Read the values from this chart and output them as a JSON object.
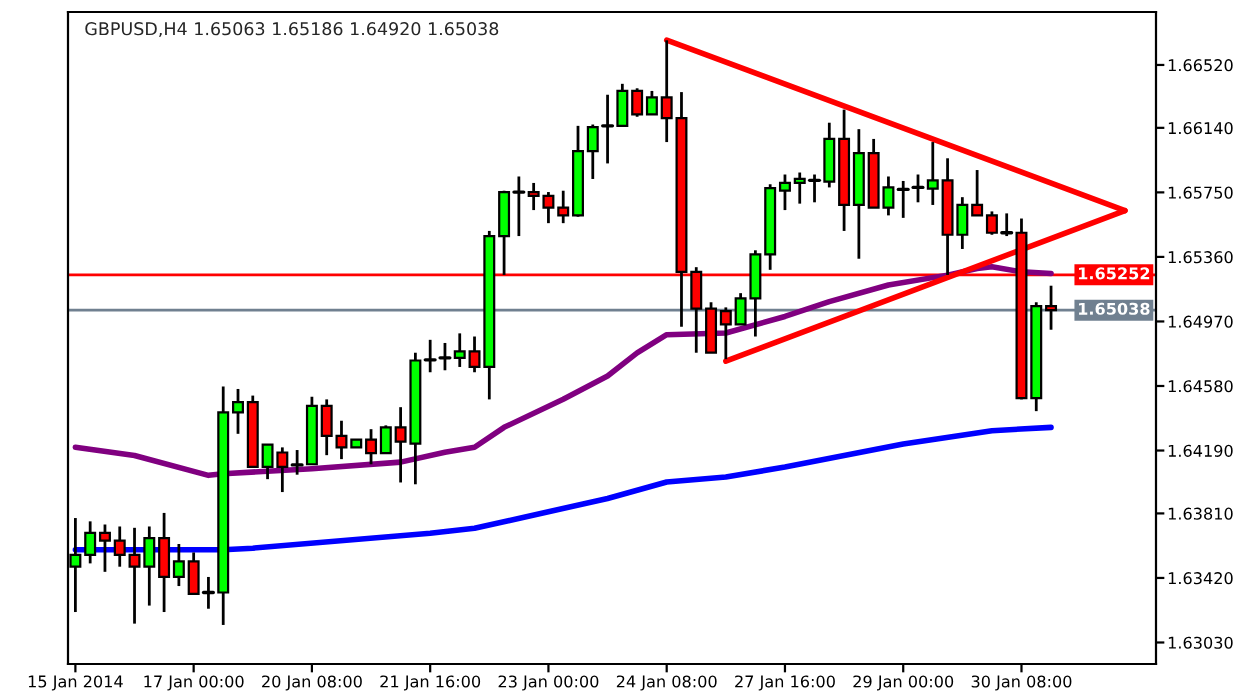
{
  "chart_data": {
    "type": "candlestick",
    "title": "GBPUSD,H4 1.65063 1.65186 1.64920 1.65038",
    "categories": [
      "15 Jan 2014",
      null,
      null,
      null,
      null,
      null,
      null,
      null,
      "17 Jan 00:00",
      null,
      null,
      null,
      null,
      null,
      null,
      null,
      "20 Jan 08:00",
      null,
      null,
      null,
      null,
      null,
      null,
      null,
      "21 Jan 16:00",
      null,
      null,
      null,
      null,
      null,
      null,
      null,
      "23 Jan 00:00",
      null,
      null,
      null,
      null,
      null,
      null,
      null,
      "24 Jan 08:00",
      null,
      null,
      null,
      null,
      null,
      null,
      null,
      "27 Jan 16:00",
      null,
      null,
      null,
      null,
      null,
      null,
      null,
      "29 Jan 00:00",
      null,
      null,
      null,
      null,
      null,
      null,
      null,
      "30 Jan 08:00",
      null,
      null,
      null,
      null,
      null,
      null,
      null,
      null,
      null
    ],
    "ohlc": [
      [
        1.63488,
        1.63782,
        1.63214,
        1.63559
      ],
      [
        1.63559,
        1.63762,
        1.63508,
        1.63692
      ],
      [
        1.63692,
        1.63743,
        1.63457,
        1.63645
      ],
      [
        1.63645,
        1.63731,
        1.63488,
        1.63559
      ],
      [
        1.63559,
        1.63723,
        1.63144,
        1.63488
      ],
      [
        1.63488,
        1.63731,
        1.63253,
        1.63661
      ],
      [
        1.63661,
        1.63813,
        1.63214,
        1.63426
      ],
      [
        1.63426,
        1.63625,
        1.63371,
        1.6352
      ],
      [
        1.6352,
        1.63574,
        1.63324,
        1.63324
      ],
      [
        1.63332,
        1.63426,
        1.63234,
        1.63332
      ],
      [
        1.63332,
        1.64577,
        1.63136,
        1.64421
      ],
      [
        1.64421,
        1.64562,
        1.64291,
        1.64483
      ],
      [
        1.64483,
        1.64522,
        1.64091,
        1.64091
      ],
      [
        1.64091,
        1.64225,
        1.64017,
        1.64225
      ],
      [
        1.64178,
        1.64209,
        1.63939,
        1.64091
      ],
      [
        1.64103,
        1.64193,
        1.64044,
        1.64103
      ],
      [
        1.64107,
        1.64515,
        1.64107,
        1.6446
      ],
      [
        1.6446,
        1.64499,
        1.64162,
        1.64279
      ],
      [
        1.64279,
        1.6437,
        1.64138,
        1.64209
      ],
      [
        1.64209,
        1.64256,
        1.64209,
        1.64256
      ],
      [
        1.64256,
        1.64319,
        1.64107,
        1.64174
      ],
      [
        1.64174,
        1.64342,
        1.64174,
        1.6433
      ],
      [
        1.6433,
        1.64452,
        1.63997,
        1.64244
      ],
      [
        1.64232,
        1.64781,
        1.63986,
        1.64734
      ],
      [
        1.64738,
        1.64859,
        1.64663,
        1.64738
      ],
      [
        1.6475,
        1.6484,
        1.64675,
        1.6475
      ],
      [
        1.6475,
        1.64898,
        1.64695,
        1.64789
      ],
      [
        1.64789,
        1.64879,
        1.64663,
        1.64695
      ],
      [
        1.64695,
        1.65517,
        1.64499,
        1.65486
      ],
      [
        1.65486,
        1.6576,
        1.65251,
        1.65752
      ],
      [
        1.65752,
        1.65846,
        1.65486,
        1.65752
      ],
      [
        1.65752,
        1.65807,
        1.65643,
        1.65729
      ],
      [
        1.65729,
        1.65752,
        1.65564,
        1.65658
      ],
      [
        1.65658,
        1.6576,
        1.65564,
        1.65611
      ],
      [
        1.65611,
        1.66152,
        1.65603,
        1.65999
      ],
      [
        1.65999,
        1.6616,
        1.65831,
        1.66144
      ],
      [
        1.66152,
        1.6634,
        1.65925,
        1.66152
      ],
      [
        1.66152,
        1.66406,
        1.66152,
        1.66363
      ],
      [
        1.66363,
        1.66379,
        1.66207,
        1.66222
      ],
      [
        1.66222,
        1.66363,
        1.66222,
        1.66324
      ],
      [
        1.66324,
        1.66669,
        1.66054,
        1.66199
      ],
      [
        1.66199,
        1.66356,
        1.64938,
        1.6527
      ],
      [
        1.6527,
        1.65298,
        1.64781,
        1.65047
      ],
      [
        1.65047,
        1.65086,
        1.64781,
        1.64781
      ],
      [
        1.65032,
        1.65055,
        1.64742,
        1.64953
      ],
      [
        1.64953,
        1.65141,
        1.64953,
        1.6511
      ],
      [
        1.6511,
        1.654,
        1.64879,
        1.65376
      ],
      [
        1.65376,
        1.65799,
        1.65282,
        1.65776
      ],
      [
        1.6576,
        1.65858,
        1.65643,
        1.65807
      ],
      [
        1.65807,
        1.6587,
        1.65682,
        1.65831
      ],
      [
        1.65823,
        1.65858,
        1.6569,
        1.65823
      ],
      [
        1.65815,
        1.66171,
        1.6578,
        1.66073
      ],
      [
        1.66073,
        1.6625,
        1.65517,
        1.65674
      ],
      [
        1.65674,
        1.66132,
        1.65349,
        1.65987
      ],
      [
        1.65987,
        1.66073,
        1.65658,
        1.65658
      ],
      [
        1.65658,
        1.65846,
        1.65611,
        1.6578
      ],
      [
        1.65768,
        1.65819,
        1.65596,
        1.65768
      ],
      [
        1.6578,
        1.65858,
        1.6569,
        1.6578
      ],
      [
        1.65772,
        1.66054,
        1.65674,
        1.65823
      ],
      [
        1.65823,
        1.65956,
        1.65251,
        1.65494
      ],
      [
        1.65494,
        1.65721,
        1.65408,
        1.65674
      ],
      [
        1.65674,
        1.65885,
        1.65611,
        1.65611
      ],
      [
        1.65611,
        1.65635,
        1.65494,
        1.65506
      ],
      [
        1.65506,
        1.65623,
        1.65486,
        1.65506
      ],
      [
        1.65506,
        1.65592,
        1.64499,
        1.64507
      ],
      [
        1.64507,
        1.65086,
        1.64428,
        1.65063
      ],
      [
        1.65063,
        1.65186,
        1.6492,
        1.65038
      ],
      null,
      null,
      null,
      null,
      null,
      null,
      null
    ],
    "colors": [
      "#00ff00",
      "#00ff00",
      "#ff0000",
      "#ff0000",
      "#ff0000",
      "#00ff00",
      "#ff0000",
      "#00ff00",
      "#ff0000",
      "#000000",
      "#00ff00",
      "#00ff00",
      "#ff0000",
      "#00ff00",
      "#ff0000",
      "#000000",
      "#00ff00",
      "#ff0000",
      "#ff0000",
      "#00ff00",
      "#ff0000",
      "#00ff00",
      "#ff0000",
      "#00ff00",
      "#000000",
      "#000000",
      "#00ff00",
      "#ff0000",
      "#00ff00",
      "#00ff00",
      "#000000",
      "#ff0000",
      "#ff0000",
      "#ff0000",
      "#00ff00",
      "#00ff00",
      "#000000",
      "#00ff00",
      "#ff0000",
      "#00ff00",
      "#ff0000",
      "#ff0000",
      "#ff0000",
      "#ff0000",
      "#ff0000",
      "#00ff00",
      "#00ff00",
      "#00ff00",
      "#00ff00",
      "#00ff00",
      "#000000",
      "#00ff00",
      "#ff0000",
      "#00ff00",
      "#ff0000",
      "#00ff00",
      "#000000",
      "#000000",
      "#00ff00",
      "#ff0000",
      "#00ff00",
      "#ff0000",
      "#ff0000",
      "#000000",
      "#ff0000",
      "#00ff00",
      "#ff0000",
      null,
      null,
      null,
      null,
      null,
      null,
      null
    ],
    "series": [
      {
        "type": "line",
        "color": "#800080",
        "values": [
          1.6421,
          null,
          null,
          null,
          1.6416,
          null,
          null,
          null,
          null,
          1.6404,
          1.6405,
          null,
          null,
          null,
          null,
          null,
          1.6408,
          null,
          null,
          null,
          null,
          null,
          1.6412,
          null,
          null,
          1.6418,
          null,
          1.6421,
          null,
          1.6433,
          null,
          null,
          null,
          1.645,
          null,
          null,
          1.6464,
          null,
          1.6478,
          null,
          1.6489,
          null,
          null,
          null,
          1.649,
          null,
          null,
          null,
          1.65,
          null,
          null,
          1.6509,
          null,
          null,
          null,
          1.6519,
          null,
          null,
          null,
          1.6525,
          null,
          1.6529,
          1.653,
          null,
          1.6527,
          null,
          1.6526,
          null,
          null,
          null,
          null,
          null,
          null,
          null
        ]
      },
      {
        "type": "line",
        "color": "#0000ff",
        "values": [
          1.6359,
          null,
          null,
          null,
          null,
          null,
          null,
          null,
          null,
          null,
          1.6359,
          null,
          1.636,
          null,
          null,
          null,
          null,
          null,
          null,
          null,
          null,
          null,
          null,
          null,
          1.6369,
          null,
          null,
          1.6372,
          null,
          null,
          null,
          null,
          1.6382,
          null,
          null,
          null,
          1.639,
          null,
          null,
          null,
          1.64,
          null,
          null,
          null,
          1.6403,
          null,
          null,
          null,
          1.6409,
          null,
          null,
          null,
          null,
          null,
          null,
          null,
          1.6423,
          null,
          null,
          null,
          null,
          null,
          1.6431,
          null,
          null,
          null,
          1.6433,
          null,
          null,
          null,
          null,
          null,
          null,
          null
        ]
      },
      {
        "type": "line",
        "color": "#ff0000",
        "values": [
          null,
          null,
          null,
          null,
          null,
          null,
          null,
          null,
          null,
          null,
          null,
          null,
          null,
          null,
          null,
          null,
          null,
          null,
          null,
          null,
          null,
          null,
          null,
          null,
          null,
          null,
          null,
          null,
          null,
          null,
          null,
          null,
          null,
          null,
          null,
          null,
          null,
          null,
          null,
          null,
          1.6667,
          null,
          null,
          null,
          null,
          null,
          null,
          null,
          null,
          null,
          null,
          null,
          null,
          null,
          null,
          null,
          null,
          null,
          null,
          null,
          null,
          null,
          null,
          null,
          null,
          null,
          null,
          null,
          null,
          null,
          null,
          1.6564,
          null,
          null
        ]
      },
      {
        "type": "line",
        "color": "#ff0000",
        "values": [
          null,
          null,
          null,
          null,
          null,
          null,
          null,
          null,
          null,
          null,
          null,
          null,
          null,
          null,
          null,
          null,
          null,
          null,
          null,
          null,
          null,
          null,
          null,
          null,
          null,
          null,
          null,
          null,
          null,
          null,
          null,
          null,
          null,
          null,
          null,
          null,
          null,
          null,
          null,
          null,
          null,
          null,
          null,
          null,
          1.6473,
          null,
          null,
          null,
          null,
          null,
          null,
          null,
          null,
          null,
          null,
          null,
          null,
          null,
          null,
          null,
          null,
          null,
          null,
          null,
          null,
          null,
          null,
          null,
          null,
          null,
          null,
          1.6564,
          null,
          null
        ]
      }
    ],
    "ylim": [
      1.629,
      1.6684
    ],
    "yticks": [
      {
        "value": 1.6652,
        "label": "1.66520"
      },
      {
        "value": 1.6614,
        "label": "1.66140"
      },
      {
        "value": 1.6575,
        "label": "1.65750"
      },
      {
        "value": 1.6536,
        "label": "1.65360"
      },
      {
        "value": 1.6497,
        "label": "1.64970"
      },
      {
        "value": 1.6458,
        "label": "1.64580"
      },
      {
        "value": 1.6419,
        "label": "1.64190"
      },
      {
        "value": 1.6381,
        "label": "1.63810"
      },
      {
        "value": 1.6342,
        "label": "1.63420"
      },
      {
        "value": 1.6303,
        "label": "1.63030"
      }
    ],
    "ref_lines": [
      {
        "axis": "y",
        "value": 1.65252,
        "label": "1.65252",
        "color": "#ff0000"
      },
      {
        "axis": "y",
        "value": 1.65038,
        "label": "1.65038",
        "color": "#708090"
      }
    ]
  }
}
